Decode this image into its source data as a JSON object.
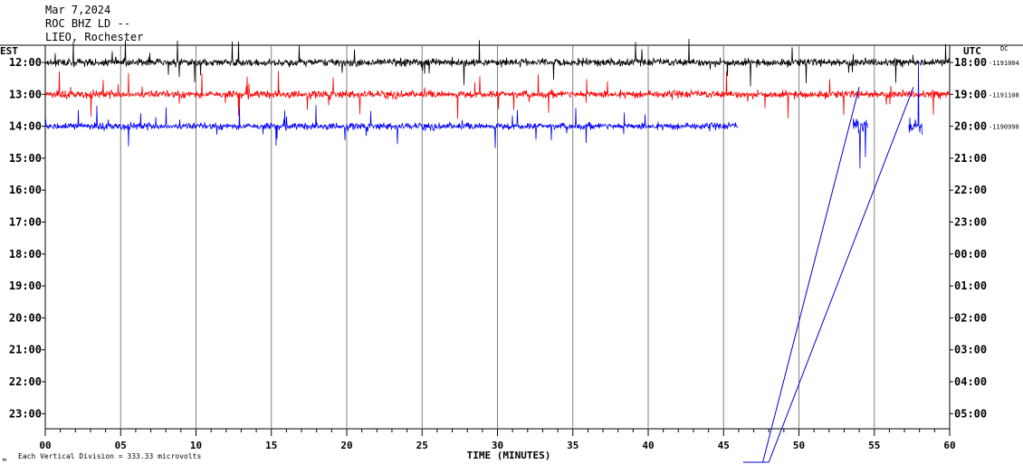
{
  "header": {
    "date": "Mar 7,2024",
    "station": "ROC BHZ LD --",
    "location": "LIEO, Rochester"
  },
  "left_zone_label": "EST",
  "right_zone_label": "UTC",
  "dc_label": "DC",
  "x_axis_title": "TIME (MINUTES)",
  "footer_note": "Each Vertical Division =  333.33 microvolts",
  "colors": {
    "trace_1": "#000000",
    "trace_2": "#ff0000",
    "trace_3": "#0000ff",
    "gridline": "#808080",
    "background": "#ffffff"
  },
  "chart_data": {
    "type": "line",
    "title": "",
    "xlabel": "TIME (MINUTES)",
    "xlim": [
      0,
      60
    ],
    "x_ticks": [
      "00",
      "05",
      "10",
      "15",
      "20",
      "25",
      "30",
      "35",
      "40",
      "45",
      "50",
      "55",
      "60"
    ],
    "rows": [
      {
        "est": "12:00",
        "utc": "18:00",
        "dc": "-1191004"
      },
      {
        "est": "13:00",
        "utc": "19:00",
        "dc": "-1191108"
      },
      {
        "est": "14:00",
        "utc": "20:00",
        "dc": "-1190990"
      },
      {
        "est": "15:00",
        "utc": "21:00",
        "dc": ""
      },
      {
        "est": "16:00",
        "utc": "22:00",
        "dc": ""
      },
      {
        "est": "17:00",
        "utc": "23:00",
        "dc": ""
      },
      {
        "est": "18:00",
        "utc": "00:00",
        "dc": ""
      },
      {
        "est": "19:00",
        "utc": "01:00",
        "dc": ""
      },
      {
        "est": "20:00",
        "utc": "02:00",
        "dc": ""
      },
      {
        "est": "21:00",
        "utc": "03:00",
        "dc": ""
      },
      {
        "est": "22:00",
        "utc": "04:00",
        "dc": ""
      },
      {
        "est": "23:00",
        "utc": "05:00",
        "dc": ""
      }
    ],
    "traces": [
      {
        "row": 0,
        "color": "#000000",
        "start_min": 0,
        "end_min": 60,
        "amp": 1.0
      },
      {
        "row": 1,
        "color": "#ff0000",
        "start_min": 0,
        "end_min": 60,
        "amp": 1.0
      },
      {
        "row": 2,
        "color": "#0000ff",
        "start_min": 0,
        "end_min": 46,
        "amp": 0.9
      }
    ],
    "bursts": [
      {
        "row": 2,
        "color": "#0000ff",
        "start_min": 53.6,
        "end_min": 54.6
      },
      {
        "row": 2,
        "color": "#0000ff",
        "start_min": 57.3,
        "end_min": 58.2
      }
    ],
    "transition_lines": [
      {
        "from_min": 47.6,
        "to_min": 54.0
      },
      {
        "from_min": 48.0,
        "to_min": 57.6
      }
    ],
    "vertical_division_microvolts": 333.33
  }
}
